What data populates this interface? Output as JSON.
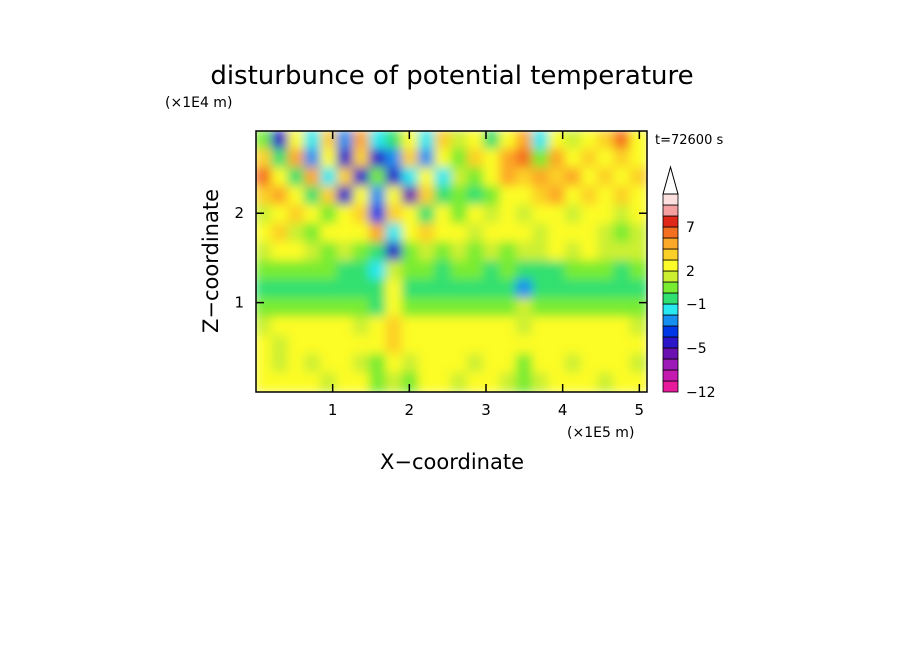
{
  "chart_data": {
    "type": "heatmap",
    "title": "disturbunce of potential temperature",
    "xlabel": "X−coordinate",
    "ylabel": "Z−coordinate",
    "x_unit": "(×1E5 m)",
    "y_unit": "(×1E4 m)",
    "time_label": "t=72600 s",
    "xlim": [
      0,
      5.1
    ],
    "ylim": [
      0,
      2.92
    ],
    "x_ticks": [
      1,
      2,
      3,
      4,
      5
    ],
    "y_ticks": [
      1,
      2
    ],
    "x_tick_labels": [
      "1",
      "2",
      "3",
      "4",
      "5"
    ],
    "y_tick_labels": [
      "1",
      "2"
    ],
    "colorbar": {
      "levels": [
        -12,
        -10,
        -8,
        -6,
        -5,
        -4,
        -3,
        -2,
        -1,
        0,
        1,
        2,
        3,
        4,
        5,
        7,
        9,
        11
      ],
      "level_labels": [
        {
          "value": 7,
          "text": "7"
        },
        {
          "value": 2,
          "text": "2"
        },
        {
          "value": -1,
          "text": "−1"
        },
        {
          "value": -5,
          "text": "−5"
        },
        {
          "value": -12,
          "text": "−12"
        }
      ],
      "colors": [
        "#e81a9c",
        "#c41ab0",
        "#9b1ab8",
        "#6a10b0",
        "#2a16c8",
        "#0038e8",
        "#1690f0",
        "#28e8f0",
        "#30e070",
        "#78ec30",
        "#ccf030",
        "#fcfc28",
        "#fcd028",
        "#fca828",
        "#f47020",
        "#e02818",
        "#f4a0a0",
        "#fce0e0"
      ],
      "extend": "max"
    },
    "field": {
      "description_values": "approximate disturbance field (K) sampled on a 24x14 grid, rows from top (z=2.92) to bottom (z=0), columns x=0..5.1",
      "rows": [
        [
          0,
          -5,
          2,
          -2,
          3,
          -3,
          4,
          -2,
          -1,
          2,
          -2,
          3,
          1,
          2,
          -1,
          2,
          4,
          -2,
          2,
          1,
          2,
          3,
          5,
          2
        ],
        [
          3,
          -1,
          4,
          -3,
          2,
          -5,
          3,
          -5,
          -3,
          3,
          -3,
          2,
          0,
          3,
          2,
          4,
          5,
          0,
          4,
          2,
          3,
          2,
          3,
          2
        ],
        [
          5,
          2,
          -1,
          4,
          -2,
          3,
          -5,
          0,
          -5,
          -2,
          2,
          -2,
          1,
          0,
          2,
          4,
          3,
          4,
          3,
          4,
          2,
          3,
          2,
          3
        ],
        [
          3,
          4,
          2,
          -1,
          3,
          -5,
          2,
          -3,
          2,
          -6,
          3,
          -1,
          0,
          -1,
          0,
          2,
          2,
          3,
          4,
          2,
          3,
          2,
          3,
          2
        ],
        [
          1,
          2,
          3,
          2,
          0,
          2,
          3,
          -4,
          3,
          2,
          -1,
          2,
          0,
          2,
          1,
          2,
          1,
          2,
          2,
          1,
          2,
          2,
          1,
          2
        ],
        [
          2,
          3,
          1,
          0,
          2,
          2,
          2,
          4,
          -2,
          2,
          3,
          2,
          2,
          1,
          2,
          2,
          2,
          1,
          2,
          2,
          2,
          1,
          0,
          1
        ],
        [
          1,
          2,
          2,
          1,
          0,
          1,
          0,
          -1,
          -5,
          0,
          1,
          0,
          1,
          0,
          1,
          0,
          1,
          1,
          2,
          1,
          2,
          1,
          1,
          1
        ],
        [
          0,
          0,
          0,
          0,
          0,
          -1,
          -1,
          -2,
          1,
          0,
          0,
          -1,
          0,
          0,
          -1,
          0,
          -1,
          -1,
          -1,
          0,
          0,
          0,
          -1,
          0
        ],
        [
          -1,
          -1,
          -1,
          -1,
          -1,
          -1,
          -1,
          -1,
          2,
          -1,
          -1,
          -1,
          -1,
          -1,
          -1,
          -1,
          -3,
          -1,
          -1,
          -1,
          -1,
          -1,
          -1,
          -1
        ],
        [
          0,
          0,
          0,
          0,
          0,
          0,
          0,
          -1,
          2,
          0,
          0,
          0,
          0,
          0,
          0,
          0,
          1,
          0,
          0,
          0,
          0,
          0,
          0,
          0
        ],
        [
          1,
          2,
          2,
          2,
          2,
          2,
          1,
          2,
          3,
          2,
          2,
          2,
          2,
          2,
          2,
          2,
          1,
          2,
          2,
          2,
          2,
          2,
          2,
          1
        ],
        [
          2,
          1,
          2,
          2,
          2,
          2,
          2,
          2,
          3,
          2,
          2,
          2,
          2,
          2,
          2,
          2,
          2,
          2,
          2,
          2,
          2,
          2,
          2,
          2
        ],
        [
          2,
          1,
          2,
          1,
          2,
          2,
          1,
          0,
          2,
          1,
          2,
          2,
          2,
          1,
          2,
          2,
          0,
          2,
          2,
          1,
          2,
          2,
          2,
          1
        ],
        [
          2,
          2,
          2,
          2,
          1,
          2,
          2,
          0,
          1,
          0,
          2,
          2,
          1,
          2,
          2,
          1,
          0,
          1,
          2,
          2,
          2,
          1,
          2,
          2
        ]
      ]
    }
  }
}
